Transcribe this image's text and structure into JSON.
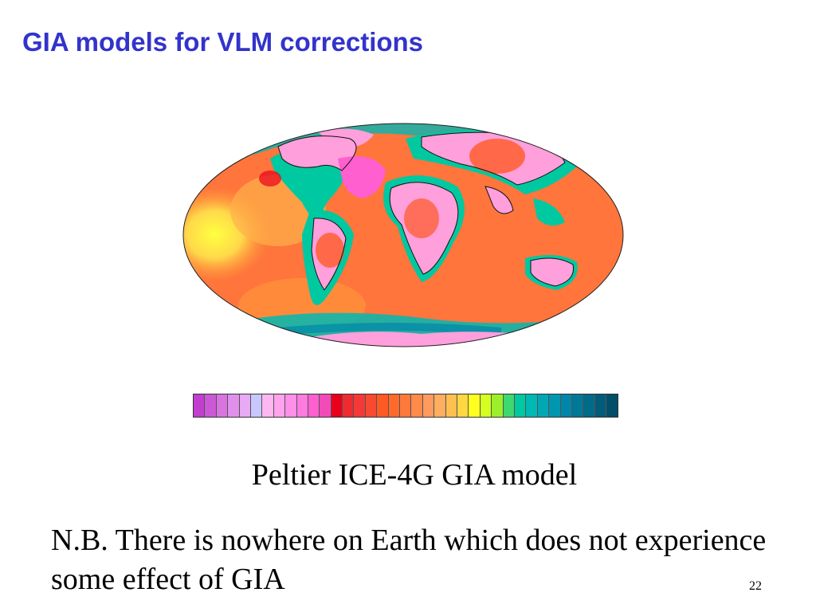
{
  "slide": {
    "title": "GIA models for VLM corrections",
    "caption": "Peltier ICE-4G GIA model",
    "note": "N.B. There is nowhere on Earth which does not experience some effect of GIA",
    "page_number": "22"
  },
  "map": {
    "projection": "mollweide",
    "ocean_color": "#ff6a3a",
    "land_color": "#ff9fdc",
    "coast_color": "#00c8b4"
  },
  "colorbar": {
    "colors": [
      "#c23ecf",
      "#cc58d8",
      "#d873e0",
      "#e090ea",
      "#e8aaf4",
      "#c8c8ff",
      "#ffb7f2",
      "#ffa3ee",
      "#ff8fe8",
      "#ff7bdf",
      "#ff5fcf",
      "#f24ab8",
      "#e8001c",
      "#ef2a30",
      "#f43a36",
      "#f84a30",
      "#ff5a24",
      "#ff6a2a",
      "#ff7a3a",
      "#ff8a4a",
      "#ff9a5e",
      "#ffad5e",
      "#ffc050",
      "#ffd740",
      "#ffff20",
      "#d4ff20",
      "#9cef2a",
      "#3cd870",
      "#00c8a0",
      "#00b8b4",
      "#00a8b4",
      "#0096b0",
      "#0086a8",
      "#007898",
      "#006a88",
      "#005c78",
      "#004e68"
    ]
  }
}
